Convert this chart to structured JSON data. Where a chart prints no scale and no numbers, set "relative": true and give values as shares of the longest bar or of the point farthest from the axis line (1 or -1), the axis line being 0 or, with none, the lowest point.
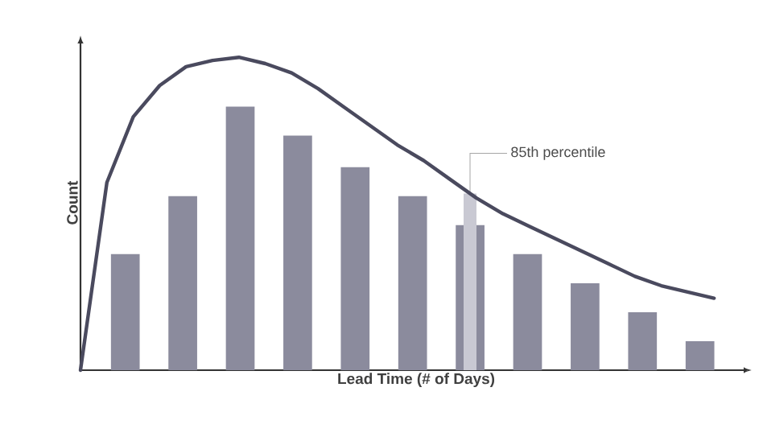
{
  "chart_data": [
    {
      "type": "bar",
      "relative": true,
      "xlabel": "Lead Time (# of Days)",
      "ylabel": "Count",
      "categories": [
        null,
        null,
        null,
        null,
        null,
        null,
        null,
        null,
        null,
        null,
        null
      ],
      "series": [
        {
          "color": "#8b8b9d",
          "values": [
            0.44,
            0.66,
            1.0,
            0.89,
            0.77,
            0.66,
            0.55,
            0.44,
            0.33,
            0.22,
            0.11
          ]
        }
      ],
      "annotations": [
        "85th percentile"
      ]
    },
    {
      "type": "line",
      "relative": true,
      "categories": [
        null,
        null,
        null,
        null,
        null,
        null,
        null,
        null,
        null,
        null,
        null,
        null,
        null,
        null,
        null,
        null,
        null,
        null,
        null,
        null,
        null,
        null,
        null,
        null,
        null
      ],
      "series": [
        {
          "color": "#4a4a5e",
          "values": [
            0,
            0.6,
            0.81,
            0.91,
            0.97,
            0.99,
            1.0,
            0.98,
            0.95,
            0.9,
            0.84,
            0.78,
            0.72,
            0.67,
            0.61,
            0.55,
            0.5,
            0.46,
            0.42,
            0.38,
            0.34,
            0.3,
            0.27,
            0.25,
            0.23
          ]
        }
      ]
    }
  ]
}
